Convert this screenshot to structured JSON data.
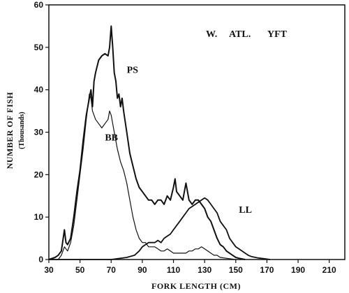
{
  "chart_data": {
    "type": "line",
    "title": "",
    "annotation": [
      "W.",
      "ATL.",
      "YFT"
    ],
    "xlabel": "FORK LENGTH (CM)",
    "ylabel": "NUMBER OF FISH",
    "ylabel_sub": "(Thousands)",
    "xlim": [
      30,
      220
    ],
    "ylim": [
      0,
      60
    ],
    "xticks": [
      30,
      50,
      70,
      90,
      110,
      130,
      150,
      170,
      190,
      210
    ],
    "yticks": [
      0,
      10,
      20,
      30,
      40,
      50,
      60
    ],
    "grid": false,
    "series": [
      {
        "name": "PS",
        "points": [
          [
            30,
            0
          ],
          [
            34,
            0.5
          ],
          [
            36,
            1
          ],
          [
            38,
            2
          ],
          [
            40,
            7
          ],
          [
            41,
            4
          ],
          [
            42,
            3.5
          ],
          [
            44,
            5
          ],
          [
            46,
            10
          ],
          [
            48,
            16
          ],
          [
            50,
            21
          ],
          [
            52,
            28
          ],
          [
            54,
            34
          ],
          [
            56,
            38
          ],
          [
            57,
            40
          ],
          [
            58,
            36
          ],
          [
            59,
            42
          ],
          [
            60,
            44
          ],
          [
            62,
            47
          ],
          [
            64,
            48
          ],
          [
            66,
            48.5
          ],
          [
            68,
            48
          ],
          [
            69,
            50
          ],
          [
            70,
            55
          ],
          [
            71,
            50
          ],
          [
            72,
            44
          ],
          [
            73,
            42
          ],
          [
            74,
            38
          ],
          [
            75,
            39
          ],
          [
            76,
            36
          ],
          [
            77,
            38
          ],
          [
            78,
            35
          ],
          [
            80,
            30
          ],
          [
            82,
            25
          ],
          [
            84,
            22
          ],
          [
            86,
            19
          ],
          [
            88,
            17
          ],
          [
            90,
            16
          ],
          [
            92,
            15
          ],
          [
            94,
            14
          ],
          [
            96,
            14
          ],
          [
            98,
            13
          ],
          [
            100,
            14
          ],
          [
            102,
            14
          ],
          [
            104,
            13
          ],
          [
            106,
            15
          ],
          [
            108,
            14
          ],
          [
            110,
            17
          ],
          [
            111,
            19
          ],
          [
            112,
            16
          ],
          [
            114,
            15
          ],
          [
            116,
            14
          ],
          [
            118,
            18
          ],
          [
            120,
            14
          ],
          [
            122,
            13
          ],
          [
            124,
            14
          ],
          [
            126,
            14
          ],
          [
            128,
            13
          ],
          [
            130,
            12
          ],
          [
            132,
            10
          ],
          [
            134,
            9
          ],
          [
            136,
            7
          ],
          [
            138,
            5
          ],
          [
            140,
            3.5
          ],
          [
            142,
            3
          ],
          [
            144,
            2
          ],
          [
            146,
            1.5
          ],
          [
            148,
            1
          ],
          [
            150,
            0.5
          ],
          [
            152,
            0.3
          ],
          [
            156,
            0
          ]
        ]
      },
      {
        "name": "BB",
        "points": [
          [
            30,
            0
          ],
          [
            36,
            0
          ],
          [
            38,
            1
          ],
          [
            40,
            3
          ],
          [
            42,
            2
          ],
          [
            44,
            4
          ],
          [
            46,
            8
          ],
          [
            48,
            14
          ],
          [
            50,
            20
          ],
          [
            52,
            26
          ],
          [
            54,
            33
          ],
          [
            56,
            39
          ],
          [
            57,
            38
          ],
          [
            58,
            35
          ],
          [
            60,
            33
          ],
          [
            62,
            32
          ],
          [
            64,
            31
          ],
          [
            66,
            32
          ],
          [
            68,
            33
          ],
          [
            69,
            35
          ],
          [
            70,
            34
          ],
          [
            72,
            30
          ],
          [
            74,
            26
          ],
          [
            76,
            23
          ],
          [
            78,
            21
          ],
          [
            80,
            18
          ],
          [
            82,
            14
          ],
          [
            84,
            10
          ],
          [
            86,
            7
          ],
          [
            88,
            5
          ],
          [
            90,
            4
          ],
          [
            92,
            4
          ],
          [
            94,
            3
          ],
          [
            96,
            3
          ],
          [
            98,
            3
          ],
          [
            100,
            2.5
          ],
          [
            102,
            2
          ],
          [
            104,
            2
          ],
          [
            106,
            2.5
          ],
          [
            108,
            2
          ],
          [
            110,
            1.5
          ],
          [
            112,
            1.5
          ],
          [
            114,
            1.5
          ],
          [
            116,
            1.5
          ],
          [
            118,
            1.5
          ],
          [
            120,
            2
          ],
          [
            122,
            2
          ],
          [
            124,
            2.5
          ],
          [
            126,
            2.5
          ],
          [
            128,
            3
          ],
          [
            130,
            2.5
          ],
          [
            132,
            2
          ],
          [
            134,
            1.5
          ],
          [
            136,
            1
          ],
          [
            138,
            1
          ],
          [
            140,
            0.5
          ],
          [
            146,
            0.2
          ],
          [
            150,
            0
          ]
        ]
      },
      {
        "name": "LL",
        "points": [
          [
            30,
            0
          ],
          [
            60,
            0
          ],
          [
            70,
            0
          ],
          [
            80,
            0.5
          ],
          [
            85,
            1
          ],
          [
            88,
            2
          ],
          [
            90,
            3
          ],
          [
            92,
            3.5
          ],
          [
            94,
            4
          ],
          [
            96,
            4
          ],
          [
            98,
            4
          ],
          [
            100,
            4.5
          ],
          [
            102,
            4
          ],
          [
            104,
            5
          ],
          [
            106,
            5.5
          ],
          [
            108,
            6
          ],
          [
            110,
            7
          ],
          [
            112,
            8
          ],
          [
            114,
            9
          ],
          [
            116,
            10
          ],
          [
            118,
            11
          ],
          [
            120,
            12
          ],
          [
            122,
            12.5
          ],
          [
            124,
            13
          ],
          [
            126,
            13.5
          ],
          [
            128,
            14
          ],
          [
            130,
            14.5
          ],
          [
            132,
            14
          ],
          [
            134,
            13
          ],
          [
            136,
            12
          ],
          [
            138,
            11
          ],
          [
            140,
            9
          ],
          [
            142,
            8
          ],
          [
            144,
            7
          ],
          [
            146,
            5
          ],
          [
            148,
            4
          ],
          [
            150,
            3
          ],
          [
            152,
            2.5
          ],
          [
            154,
            2
          ],
          [
            156,
            1.5
          ],
          [
            158,
            1
          ],
          [
            160,
            0.7
          ],
          [
            164,
            0.4
          ],
          [
            168,
            0.2
          ],
          [
            172,
            0
          ]
        ]
      }
    ],
    "series_label_anchors": {
      "PS": [
        80,
        44
      ],
      "BB": [
        66,
        28
      ],
      "LL": [
        152,
        11
      ]
    }
  }
}
